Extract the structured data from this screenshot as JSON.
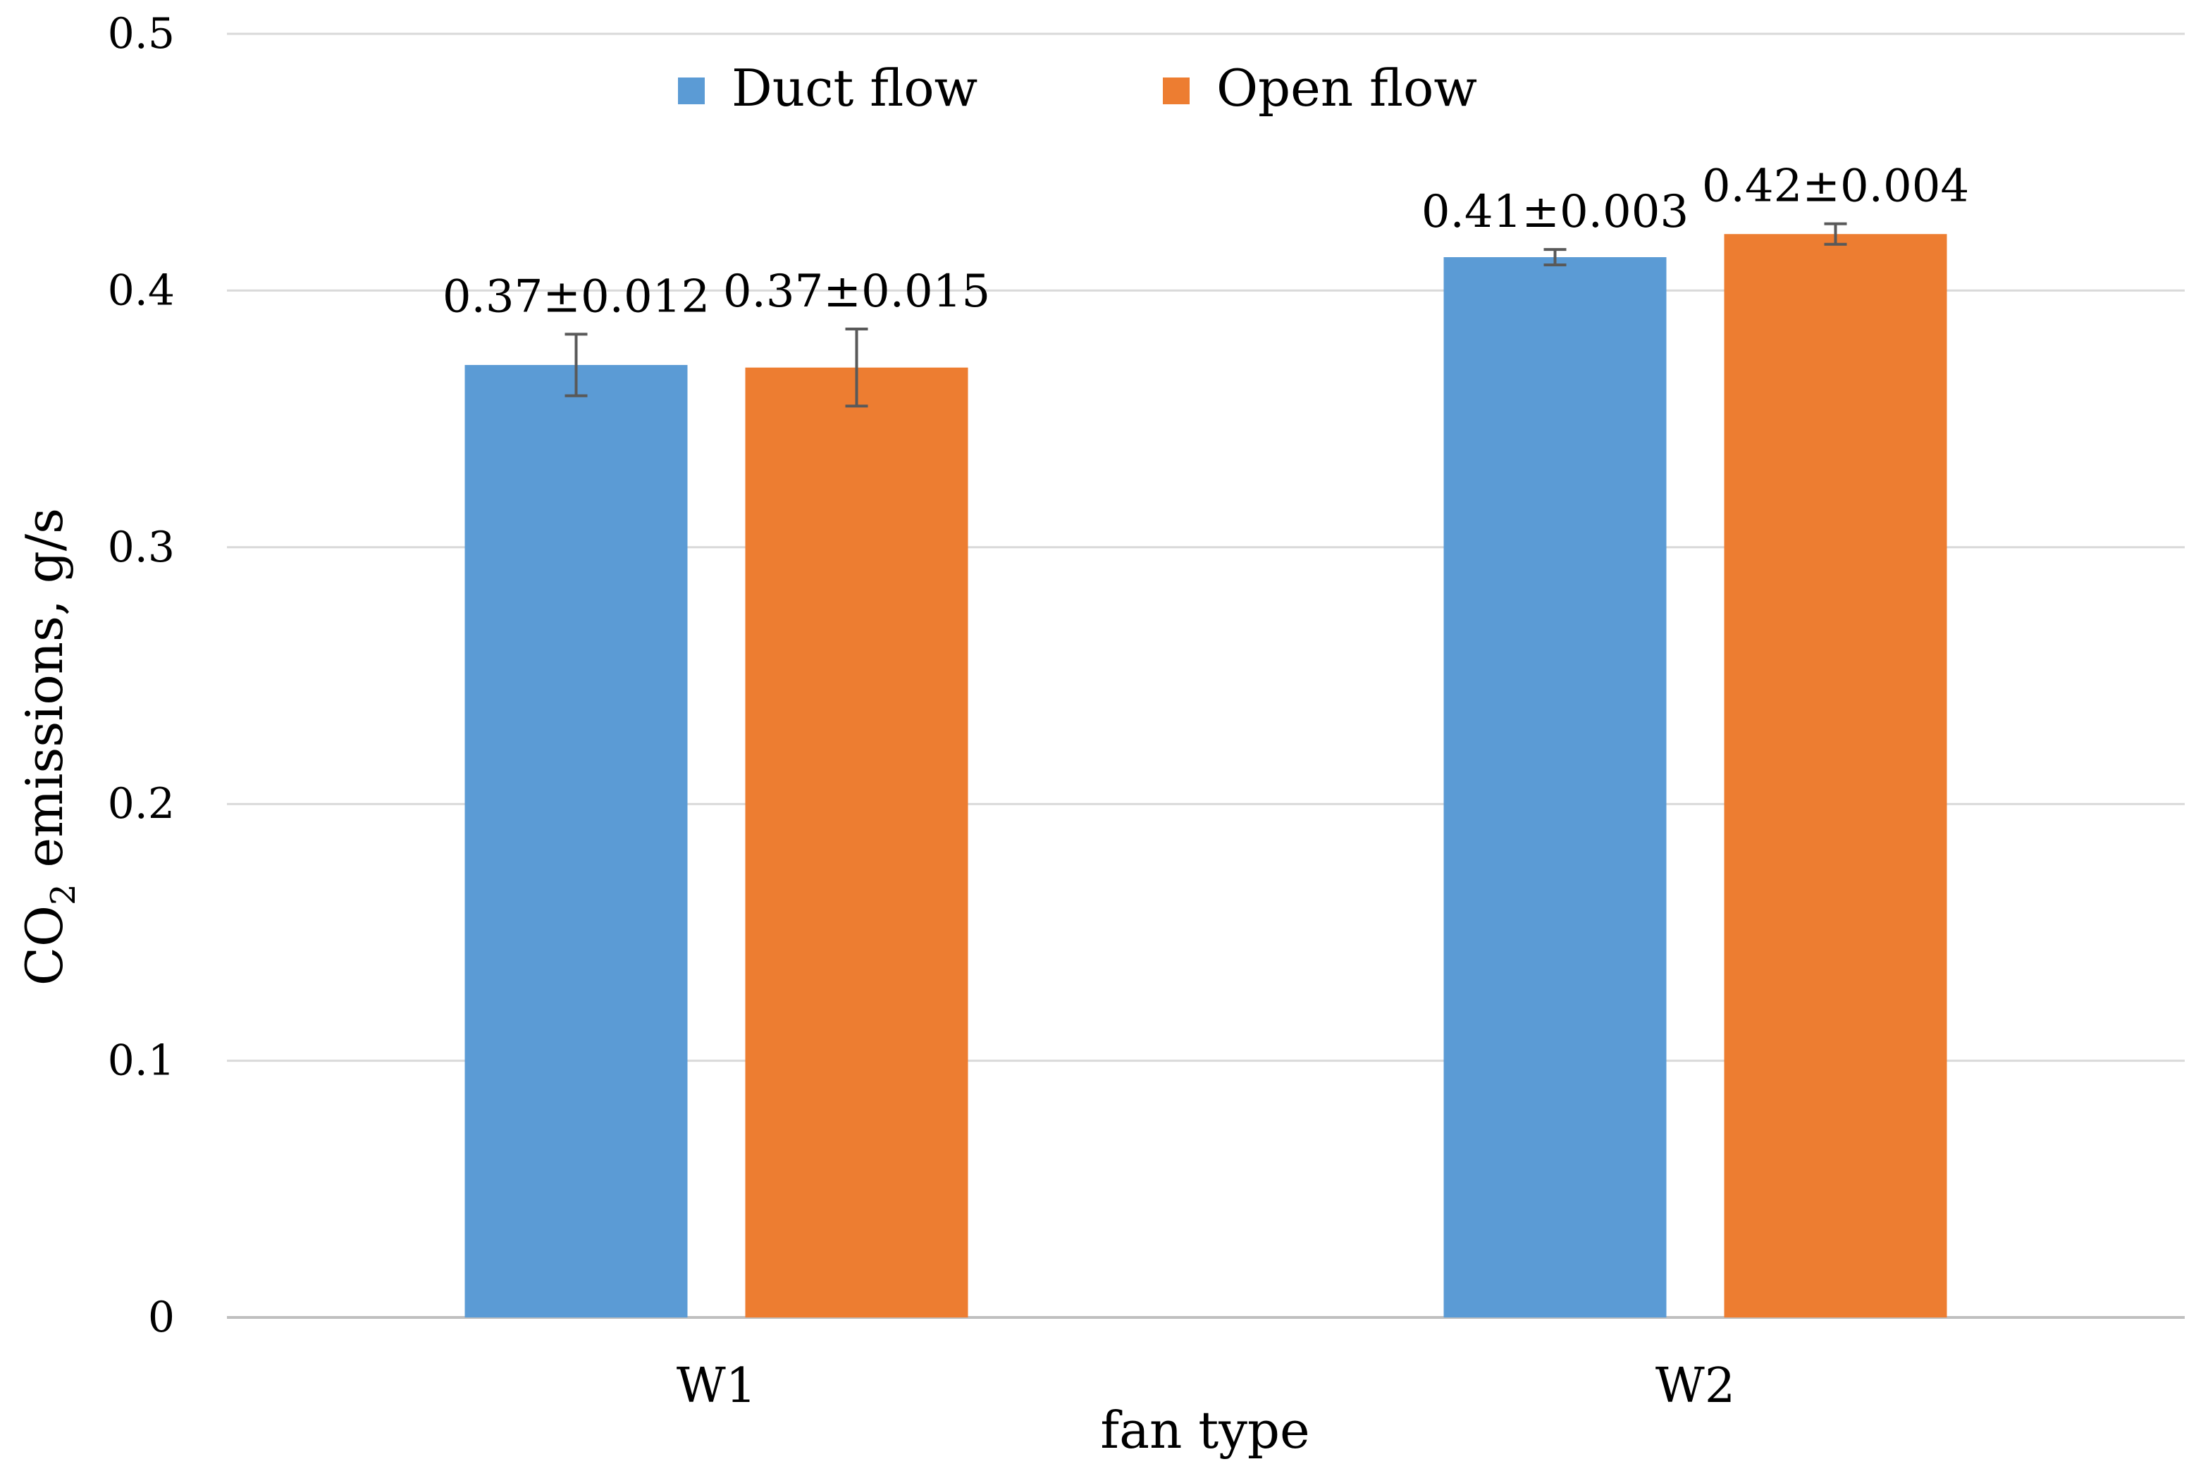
{
  "chart_data": {
    "type": "bar",
    "title": "",
    "xlabel": "fan type",
    "ylabel": "CO2 emissions, g/s",
    "ylabel_parts": {
      "pre": "CO",
      "sub": "2",
      "post": " emissions, g/s"
    },
    "ylim": [
      0,
      0.5
    ],
    "yticks": [
      {
        "value": 0,
        "label": "0"
      },
      {
        "value": 0.1,
        "label": "0.1"
      },
      {
        "value": 0.2,
        "label": "0.2"
      },
      {
        "value": 0.3,
        "label": "0.3"
      },
      {
        "value": 0.4,
        "label": "0.4"
      },
      {
        "value": 0.5,
        "label": "0.5"
      }
    ],
    "grid": true,
    "legend_position": "top-center",
    "categories": [
      "W1",
      "W2"
    ],
    "series": [
      {
        "name": "Duct flow",
        "color": "#5B9BD5",
        "values": [
          0.371,
          0.413
        ],
        "errors": [
          0.012,
          0.003
        ],
        "labels": [
          "0.37±0.012",
          "0.41±0.003"
        ]
      },
      {
        "name": "Open flow",
        "color": "#ED7D31",
        "values": [
          0.37,
          0.422
        ],
        "errors": [
          0.015,
          0.004
        ],
        "labels": [
          "0.37±0.015",
          "0.42±0.004"
        ]
      }
    ]
  }
}
